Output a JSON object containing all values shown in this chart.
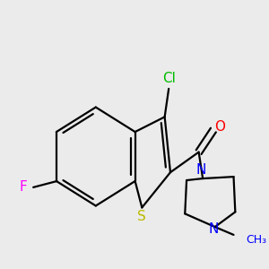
{
  "bg_color": "#ebebeb",
  "bond_color": "#000000",
  "bond_width": 1.6,
  "figsize": [
    3.0,
    3.0
  ],
  "dpi": 100,
  "atoms": {
    "Cl": {
      "color": "#00cc00",
      "fontsize": 10
    },
    "O": {
      "color": "#ff0000",
      "fontsize": 10
    },
    "S": {
      "color": "#bbbb00",
      "fontsize": 10
    },
    "F": {
      "color": "#ff00ff",
      "fontsize": 10
    },
    "N": {
      "color": "#0000ff",
      "fontsize": 10
    },
    "Me": {
      "color": "#0000ff",
      "fontsize": 9
    }
  }
}
